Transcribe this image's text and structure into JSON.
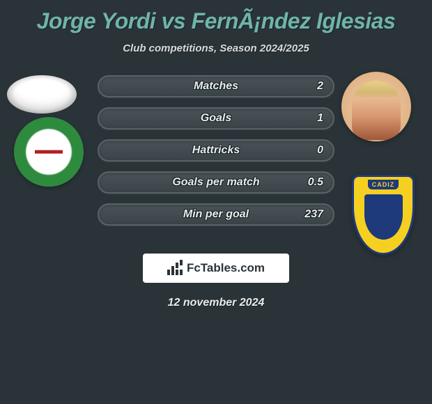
{
  "header": {
    "title": "Jorge Yordi vs FernÃ¡ndez Iglesias",
    "subtitle": "Club competitions, Season 2024/2025"
  },
  "stats": [
    {
      "label": "Matches",
      "value_right": "2"
    },
    {
      "label": "Goals",
      "value_right": "1"
    },
    {
      "label": "Hattricks",
      "value_right": "0"
    },
    {
      "label": "Goals per match",
      "value_right": "0.5"
    },
    {
      "label": "Min per goal",
      "value_right": "237"
    }
  ],
  "footer": {
    "brand": "FcTables.com",
    "date": "12 november 2024"
  },
  "colors": {
    "background": "#2a3338",
    "accent": "#6fb5a8",
    "text_light": "#e8ecec",
    "bar_bg_top": "#4a5458",
    "bar_bg_bottom": "#3a4448",
    "bar_border": "#5a6468"
  }
}
